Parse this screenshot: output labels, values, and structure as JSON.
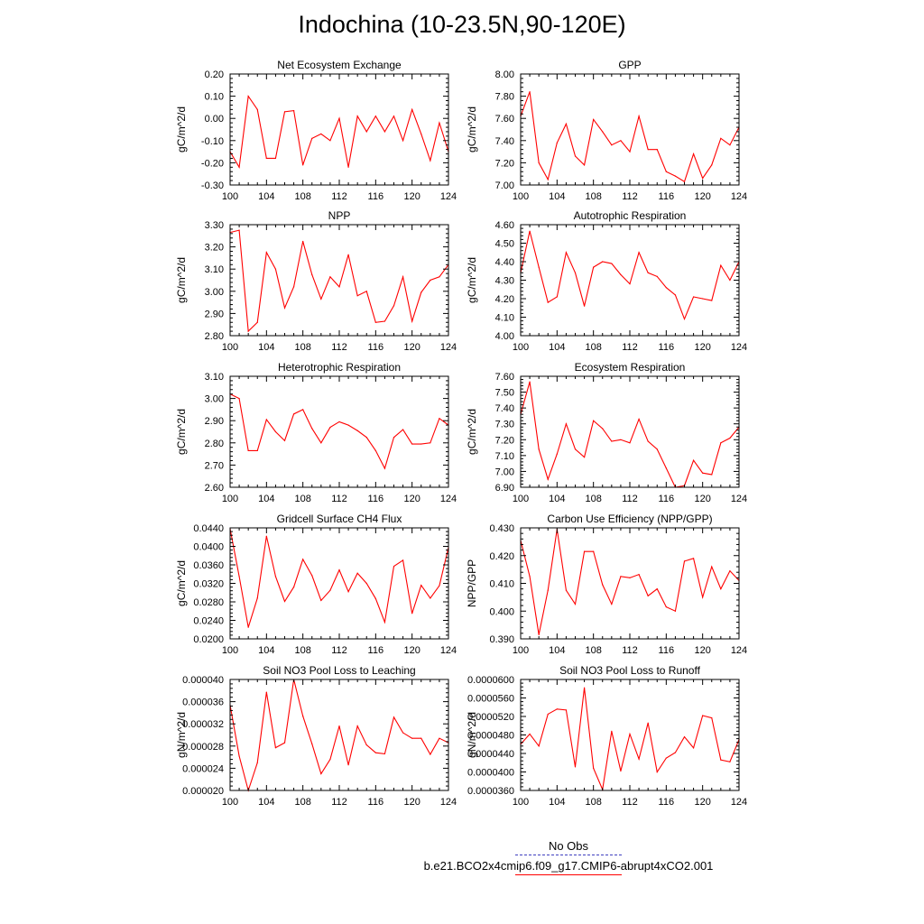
{
  "figure": {
    "title": "Indochina (10-23.5N,90-120E)",
    "line_color": "#ff0000",
    "obs_color": "#4040c0"
  },
  "legend": {
    "obs_label": "No Obs",
    "model_label": "b.e21.BCO2x4cmip6.f09_g17.CMIP6-abrupt4xCO2.001"
  },
  "chart_data": [
    {
      "type": "line",
      "title": "Net Ecosystem Exchange",
      "ylabel": "gC/m^2/d",
      "xlim": [
        100,
        124
      ],
      "ylim": [
        -0.3,
        0.2
      ],
      "xticks": [
        "100",
        "104",
        "108",
        "112",
        "116",
        "120",
        "124"
      ],
      "yticks": [
        "-0.30",
        "-0.20",
        "-0.10",
        "0.00",
        "0.10",
        "0.20"
      ],
      "x": [
        100,
        101,
        102,
        103,
        104,
        105,
        106,
        107,
        108,
        109,
        110,
        111,
        112,
        113,
        114,
        115,
        116,
        117,
        118,
        119,
        120,
        121,
        122,
        123,
        124
      ],
      "values": [
        -0.15,
        -0.22,
        0.1,
        0.04,
        -0.18,
        -0.18,
        0.03,
        0.035,
        -0.21,
        -0.09,
        -0.07,
        -0.1,
        0.0,
        -0.22,
        0.01,
        -0.06,
        0.01,
        -0.06,
        0.01,
        -0.1,
        0.04,
        -0.07,
        -0.19,
        -0.02,
        -0.15
      ]
    },
    {
      "type": "line",
      "title": "GPP",
      "ylabel": "gC/m^2/d",
      "xlim": [
        100,
        124
      ],
      "ylim": [
        7.0,
        8.0
      ],
      "xticks": [
        "100",
        "104",
        "108",
        "112",
        "116",
        "120",
        "124"
      ],
      "yticks": [
        "7.00",
        "7.20",
        "7.40",
        "7.60",
        "7.80",
        "8.00"
      ],
      "x": [
        100,
        101,
        102,
        103,
        104,
        105,
        106,
        107,
        108,
        109,
        110,
        111,
        112,
        113,
        114,
        115,
        116,
        117,
        118,
        119,
        120,
        121,
        122,
        123,
        124
      ],
      "values": [
        7.62,
        7.84,
        7.2,
        7.05,
        7.38,
        7.55,
        7.26,
        7.18,
        7.59,
        7.48,
        7.36,
        7.4,
        7.3,
        7.62,
        7.32,
        7.32,
        7.12,
        7.08,
        7.03,
        7.28,
        7.06,
        7.18,
        7.42,
        7.36,
        7.52
      ]
    },
    {
      "type": "line",
      "title": "NPP",
      "ylabel": "gC/m^2/d",
      "xlim": [
        100,
        124
      ],
      "ylim": [
        2.8,
        3.3
      ],
      "xticks": [
        "100",
        "104",
        "108",
        "112",
        "116",
        "120",
        "124"
      ],
      "yticks": [
        "2.80",
        "2.90",
        "3.00",
        "3.10",
        "3.20",
        "3.30"
      ],
      "x": [
        100,
        101,
        102,
        103,
        104,
        105,
        106,
        107,
        108,
        109,
        110,
        111,
        112,
        113,
        114,
        115,
        116,
        117,
        118,
        119,
        120,
        121,
        122,
        123,
        124
      ],
      "values": [
        3.265,
        3.275,
        2.82,
        2.86,
        3.175,
        3.1,
        2.925,
        3.02,
        3.225,
        3.075,
        2.965,
        3.065,
        3.02,
        3.165,
        2.98,
        3.0,
        2.86,
        2.865,
        2.935,
        3.065,
        2.865,
        2.995,
        3.05,
        3.065,
        3.12
      ]
    },
    {
      "type": "line",
      "title": "Autotrophic Respiration",
      "ylabel": "gC/m^2/d",
      "xlim": [
        100,
        124
      ],
      "ylim": [
        4.0,
        4.6
      ],
      "xticks": [
        "100",
        "104",
        "108",
        "112",
        "116",
        "120",
        "124"
      ],
      "yticks": [
        "4.00",
        "4.10",
        "4.20",
        "4.30",
        "4.40",
        "4.50",
        "4.60"
      ],
      "x": [
        100,
        101,
        102,
        103,
        104,
        105,
        106,
        107,
        108,
        109,
        110,
        111,
        112,
        113,
        114,
        115,
        116,
        117,
        118,
        119,
        120,
        121,
        122,
        123,
        124
      ],
      "values": [
        4.34,
        4.565,
        4.37,
        4.18,
        4.21,
        4.45,
        4.34,
        4.16,
        4.37,
        4.4,
        4.39,
        4.33,
        4.28,
        4.45,
        4.34,
        4.32,
        4.26,
        4.22,
        4.09,
        4.21,
        4.2,
        4.19,
        4.38,
        4.3,
        4.4
      ]
    },
    {
      "type": "line",
      "title": "Heterotrophic Respiration",
      "ylabel": "gC/m^2/d",
      "xlim": [
        100,
        124
      ],
      "ylim": [
        2.6,
        3.1
      ],
      "xticks": [
        "100",
        "104",
        "108",
        "112",
        "116",
        "120",
        "124"
      ],
      "yticks": [
        "2.60",
        "2.70",
        "2.80",
        "2.90",
        "3.00",
        "3.10"
      ],
      "x": [
        100,
        101,
        102,
        103,
        104,
        105,
        106,
        107,
        108,
        109,
        110,
        111,
        112,
        113,
        114,
        115,
        116,
        117,
        118,
        119,
        120,
        121,
        122,
        123,
        124
      ],
      "values": [
        3.02,
        3.0,
        2.765,
        2.765,
        2.905,
        2.85,
        2.81,
        2.93,
        2.95,
        2.865,
        2.8,
        2.87,
        2.895,
        2.88,
        2.855,
        2.825,
        2.765,
        2.685,
        2.825,
        2.86,
        2.795,
        2.795,
        2.8,
        2.91,
        2.88
      ]
    },
    {
      "type": "line",
      "title": "Ecosystem Respiration",
      "ylabel": "gC/m^2/d",
      "xlim": [
        100,
        124
      ],
      "ylim": [
        6.9,
        7.6
      ],
      "xticks": [
        "100",
        "104",
        "108",
        "112",
        "116",
        "120",
        "124"
      ],
      "yticks": [
        "6.90",
        "7.00",
        "7.10",
        "7.20",
        "7.30",
        "7.40",
        "7.50",
        "7.60"
      ],
      "x": [
        100,
        101,
        102,
        103,
        104,
        105,
        106,
        107,
        108,
        109,
        110,
        111,
        112,
        113,
        114,
        115,
        116,
        117,
        118,
        119,
        120,
        121,
        122,
        123,
        124
      ],
      "values": [
        7.36,
        7.565,
        7.14,
        6.95,
        7.11,
        7.3,
        7.14,
        7.09,
        7.32,
        7.27,
        7.19,
        7.2,
        7.18,
        7.33,
        7.19,
        7.14,
        7.02,
        6.9,
        6.91,
        7.07,
        6.99,
        6.98,
        7.18,
        7.21,
        7.28
      ]
    },
    {
      "type": "line",
      "title": "Gridcell Surface CH4 Flux",
      "ylabel": "gC/m^2/d",
      "xlim": [
        100,
        124
      ],
      "ylim": [
        0.02,
        0.044
      ],
      "xticks": [
        "100",
        "104",
        "108",
        "112",
        "116",
        "120",
        "124"
      ],
      "yticks": [
        "0.0200",
        "0.0240",
        "0.0280",
        "0.0320",
        "0.0360",
        "0.0400",
        "0.0440"
      ],
      "x": [
        100,
        101,
        102,
        103,
        104,
        105,
        106,
        107,
        108,
        109,
        110,
        111,
        112,
        113,
        114,
        115,
        116,
        117,
        118,
        119,
        120,
        121,
        122,
        123,
        124
      ],
      "values": [
        0.0438,
        0.0335,
        0.0225,
        0.0288,
        0.0422,
        0.0335,
        0.0281,
        0.0312,
        0.0372,
        0.0337,
        0.0283,
        0.0305,
        0.0349,
        0.0302,
        0.0342,
        0.032,
        0.0287,
        0.0236,
        0.0357,
        0.037,
        0.0255,
        0.0316,
        0.0288,
        0.0315,
        0.0398
      ]
    },
    {
      "type": "line",
      "title": "Carbon Use Efficiency (NPP/GPP)",
      "ylabel": "NPP/GPP",
      "xlim": [
        100,
        124
      ],
      "ylim": [
        0.39,
        0.43
      ],
      "xticks": [
        "100",
        "104",
        "108",
        "112",
        "116",
        "120",
        "124"
      ],
      "yticks": [
        "0.390",
        "0.400",
        "0.410",
        "0.420",
        "0.430"
      ],
      "x": [
        100,
        101,
        102,
        103,
        104,
        105,
        106,
        107,
        108,
        109,
        110,
        111,
        112,
        113,
        114,
        115,
        116,
        117,
        118,
        119,
        120,
        121,
        122,
        123,
        124
      ],
      "values": [
        0.4255,
        0.4125,
        0.3915,
        0.4075,
        0.4295,
        0.4075,
        0.4025,
        0.4215,
        0.4215,
        0.4095,
        0.4025,
        0.4125,
        0.412,
        0.4132,
        0.4055,
        0.408,
        0.4015,
        0.4,
        0.418,
        0.419,
        0.405,
        0.416,
        0.408,
        0.4145,
        0.411
      ]
    },
    {
      "type": "line",
      "title": "Soil NO3 Pool Loss to Leaching",
      "ylabel": "gN/m^2/d",
      "xlim": [
        100,
        124
      ],
      "ylim": [
        2e-05,
        4e-05
      ],
      "xticks": [
        "100",
        "104",
        "108",
        "112",
        "116",
        "120",
        "124"
      ],
      "yticks": [
        "0.000020",
        "0.000024",
        "0.000028",
        "0.000032",
        "0.000036",
        "0.000040"
      ],
      "x": [
        100,
        101,
        102,
        103,
        104,
        105,
        106,
        107,
        108,
        109,
        110,
        111,
        112,
        113,
        114,
        115,
        116,
        117,
        118,
        119,
        120,
        121,
        122,
        123,
        124
      ],
      "values": [
        3.54e-05,
        2.62e-05,
        2e-05,
        2.5e-05,
        3.77e-05,
        2.77e-05,
        2.86e-05,
        4e-05,
        3.34e-05,
        2.84e-05,
        2.3e-05,
        2.56e-05,
        3.16e-05,
        2.46e-05,
        3.16e-05,
        2.82e-05,
        2.68e-05,
        2.66e-05,
        3.32e-05,
        3.04e-05,
        2.94e-05,
        2.94e-05,
        2.65e-05,
        2.94e-05,
        2.86e-05
      ]
    },
    {
      "type": "line",
      "title": "Soil NO3 Pool Loss to Runoff",
      "ylabel": "gN/m^2/d",
      "xlim": [
        100,
        124
      ],
      "ylim": [
        3.6e-05,
        6e-05
      ],
      "xticks": [
        "100",
        "104",
        "108",
        "112",
        "116",
        "120",
        "124"
      ],
      "yticks": [
        "0.0000360",
        "0.0000400",
        "0.0000440",
        "0.0000480",
        "0.0000520",
        "0.0000560",
        "0.0000600"
      ],
      "x": [
        100,
        101,
        102,
        103,
        104,
        105,
        106,
        107,
        108,
        109,
        110,
        111,
        112,
        113,
        114,
        115,
        116,
        117,
        118,
        119,
        120,
        121,
        122,
        123,
        124
      ],
      "values": [
        4.6e-05,
        4.82e-05,
        4.56e-05,
        5.25e-05,
        5.36e-05,
        5.34e-05,
        4.11e-05,
        5.82e-05,
        4.08e-05,
        3.62e-05,
        4.88e-05,
        4.02e-05,
        4.82e-05,
        4.28e-05,
        5.06e-05,
        4e-05,
        4.3e-05,
        4.42e-05,
        4.76e-05,
        4.52e-05,
        5.22e-05,
        5.17e-05,
        4.26e-05,
        4.22e-05,
        4.7e-05
      ]
    }
  ]
}
